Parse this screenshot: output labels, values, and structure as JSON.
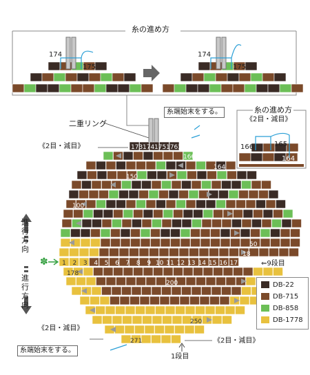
{
  "top_title": "糸の進め方",
  "top_labels": {
    "n174_left": "174",
    "n175_left": "175",
    "n174_right": "174",
    "n175_right": "175"
  },
  "side_title": "糸の進め方",
  "side_subtitle": "《2目・減目》",
  "side_labels": {
    "n166": "166",
    "n165": "165",
    "n164": "164"
  },
  "ring_label": "二重リング",
  "thread_end_top": "糸端始末をする。",
  "thread_end_bottom": "糸端始末をする。",
  "decrease_labels": {
    "top_left": "《2目・減目》",
    "bottom_left": "《2目・減目》",
    "bottom_right": "《2目・減目》"
  },
  "top_row_numbers": [
    "173",
    "174",
    "175",
    "176",
    "177"
  ],
  "row_numbers": {
    "n166": "166",
    "n165": "165",
    "n164": "164",
    "n150": "150",
    "n100": "100",
    "n50": "50",
    "n18": "18",
    "n178": "178",
    "n200": "200",
    "n250": "250",
    "n271": "271"
  },
  "count_row": [
    "1",
    "2",
    "3",
    "4",
    "5",
    "6",
    "7",
    "8",
    "9",
    "10",
    "11",
    "12",
    "13",
    "14",
    "15",
    "16",
    "17"
  ],
  "row9_label": "⇐9段目",
  "row1_label": "1段目",
  "direction_up": [
    "進",
    "行",
    "方",
    "向"
  ],
  "direction_down": [
    "進",
    "行",
    "方",
    "向"
  ],
  "start_mark": "✽",
  "colors": {
    "db22": "#3a2b25",
    "db715": "#7b4a2a",
    "db858": "#6cbf57",
    "db1778": "#e8c13e",
    "blue": "#2a9fd6",
    "grey": "#9a9a9a"
  },
  "legend": [
    {
      "label": "DB-22",
      "color": "#3a2b25"
    },
    {
      "label": "DB-715",
      "color": "#7b4a2a"
    },
    {
      "label": "DB-858",
      "color": "#6cbf57"
    },
    {
      "label": "DB-1778",
      "color": "#e8c13e"
    }
  ]
}
